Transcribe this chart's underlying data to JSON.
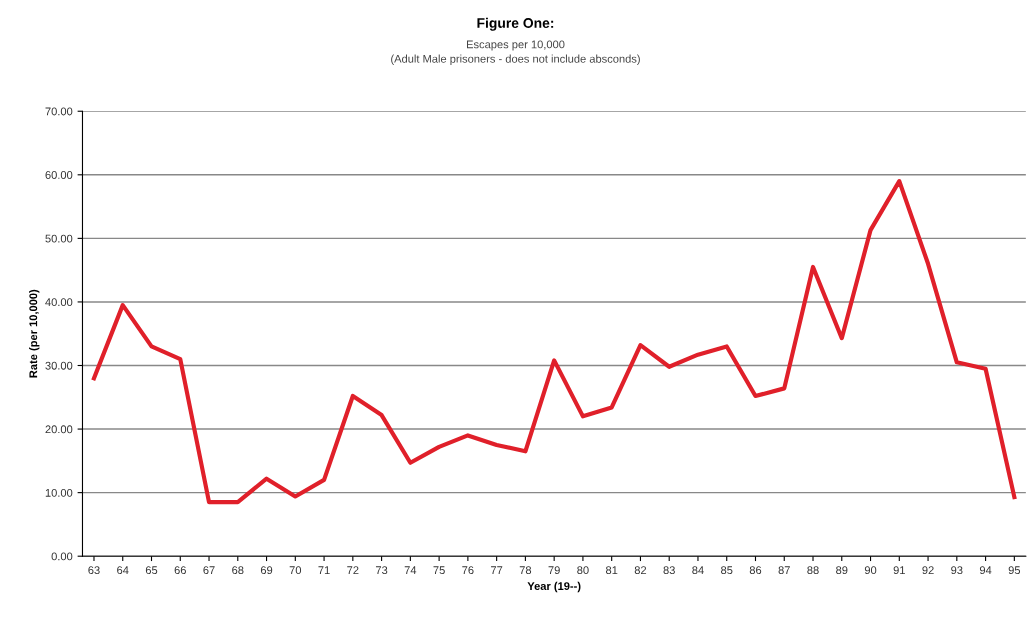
{
  "chart_data": {
    "type": "line",
    "title": "Figure One:",
    "subtitle": "Escapes per 10,000\n(Adult Male prisoners - does not include absconds)",
    "xlabel": "Year (19--)",
    "ylabel": "Rate (per 10,000)",
    "categories": [
      "63",
      "64",
      "65",
      "66",
      "67",
      "68",
      "69",
      "70",
      "71",
      "72",
      "73",
      "74",
      "75",
      "76",
      "77",
      "78",
      "79",
      "80",
      "81",
      "82",
      "83",
      "84",
      "85",
      "86",
      "87",
      "88",
      "89",
      "90",
      "91",
      "92",
      "93",
      "94",
      "95"
    ],
    "series": [
      {
        "color": "#e0202a",
        "values": [
          28,
          39.5,
          33,
          31,
          8.5,
          8.5,
          12.2,
          9.4,
          12,
          25.2,
          22.2,
          14.7,
          17.2,
          19,
          17.5,
          16.5,
          30.8,
          22,
          23.4,
          33.2,
          29.8,
          31.7,
          33,
          25.2,
          26.4,
          45.5,
          34.3,
          51.3,
          59,
          46,
          30.5,
          29.5,
          9.3
        ]
      }
    ],
    "ylim": [
      0,
      70
    ],
    "yticks": [
      {
        "value": 0,
        "label": "0.00"
      },
      {
        "value": 10,
        "label": "10.00"
      },
      {
        "value": 20,
        "label": "20.00"
      },
      {
        "value": 30,
        "label": "30.00"
      },
      {
        "value": 40,
        "label": "40.00"
      },
      {
        "value": 50,
        "label": "50.00"
      },
      {
        "value": 60,
        "label": "60.00"
      },
      {
        "value": 70,
        "label": "70.00"
      }
    ],
    "grid": "y",
    "legend": false,
    "marker": "none",
    "line_style": "solid"
  }
}
